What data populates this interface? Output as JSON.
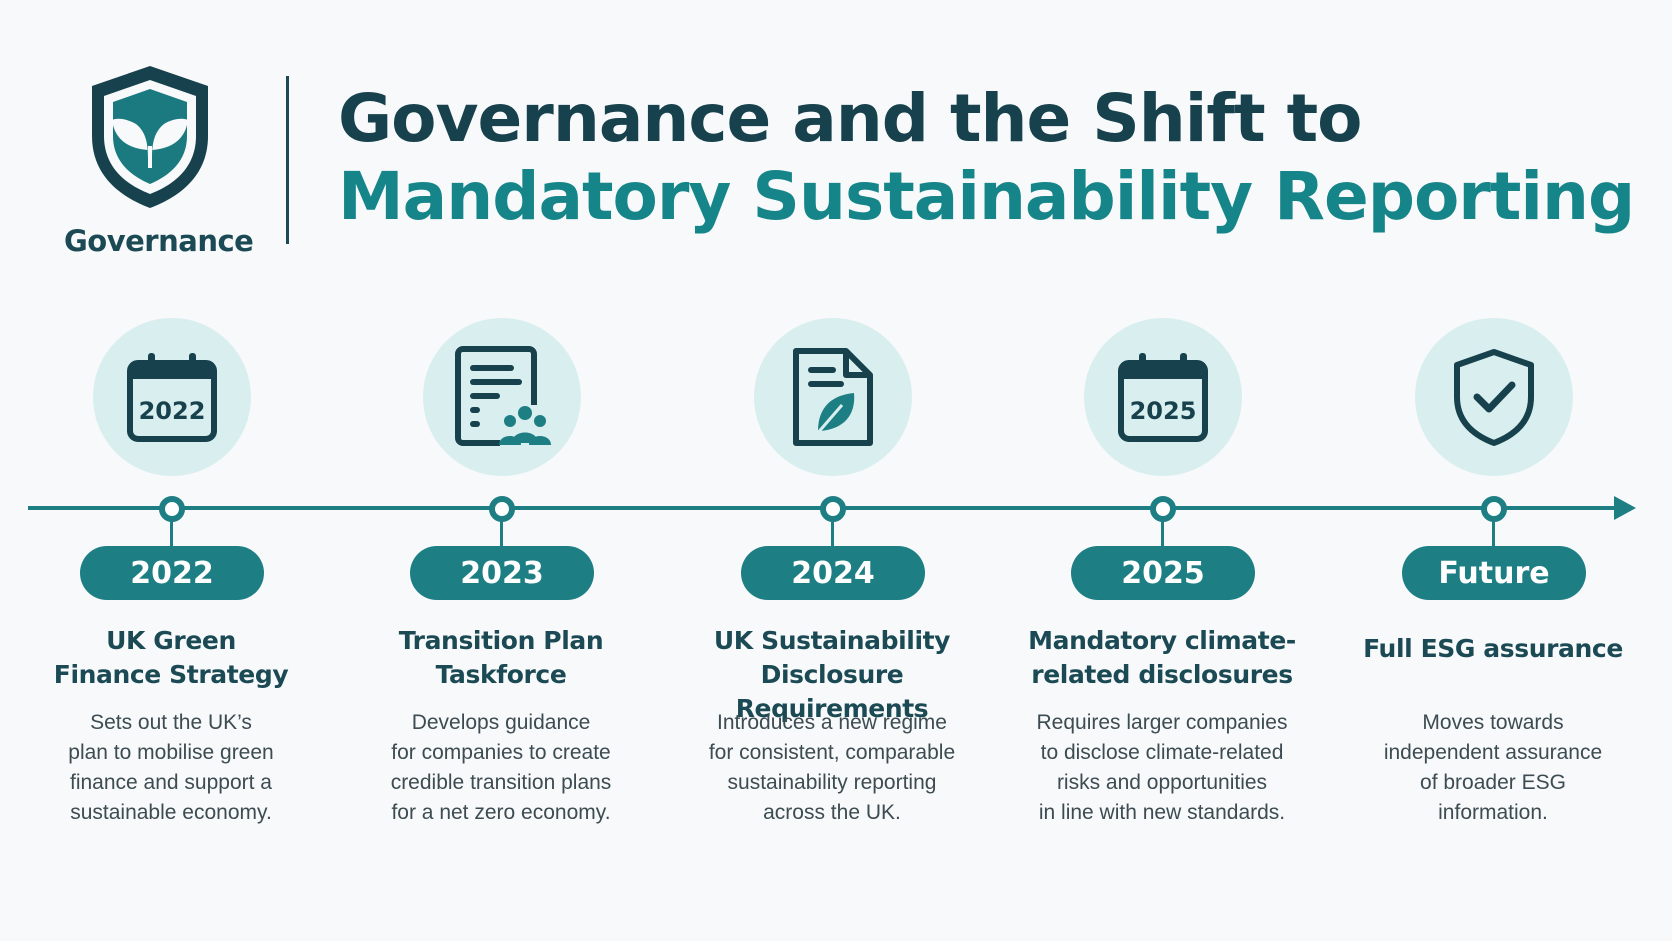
{
  "brand": {
    "label": "Governance",
    "icon": "shield-leaf-icon",
    "colors": {
      "dark": "#17414c",
      "teal": "#16858a",
      "axis": "#1d7e84",
      "circle_bg": "#d9eeee"
    }
  },
  "title": {
    "line1": "Governance and the Shift to",
    "line2": "Mandatory Sustainability Reporting"
  },
  "milestones": [
    {
      "icon": "calendar-icon",
      "icon_text": "2022",
      "year": "2022",
      "title_lines": [
        "UK Green",
        "Finance Strategy"
      ],
      "desc_lines": [
        "Sets out the UK’s",
        "plan to mobilise green",
        "finance and support a",
        "sustainable economy."
      ]
    },
    {
      "icon": "document-people-icon",
      "icon_text": "",
      "year": "2023",
      "title_lines": [
        "Transition Plan",
        "Taskforce"
      ],
      "desc_lines": [
        "Develops guidance",
        "for companies to create",
        "credible transition plans",
        "for a net zero economy."
      ]
    },
    {
      "icon": "document-leaf-icon",
      "icon_text": "",
      "year": "2024",
      "title_lines": [
        "UK Sustainability",
        "Disclosure Requirements"
      ],
      "desc_lines": [
        "Introduces a new regime",
        "for consistent, comparable",
        "sustainability reporting",
        "across the UK."
      ]
    },
    {
      "icon": "calendar-icon",
      "icon_text": "2025",
      "year": "2025",
      "title_lines": [
        "Mandatory climate-",
        "related disclosures"
      ],
      "desc_lines": [
        "Requires larger companies",
        "to disclose climate-related",
        "risks and opportunities",
        "in line with new standards."
      ]
    },
    {
      "icon": "shield-check-icon",
      "icon_text": "",
      "year": "Future",
      "title_lines": [
        "Full ESG assurance"
      ],
      "desc_lines": [
        "Moves towards",
        "independent assurance",
        "of broader ESG",
        "information."
      ]
    }
  ]
}
